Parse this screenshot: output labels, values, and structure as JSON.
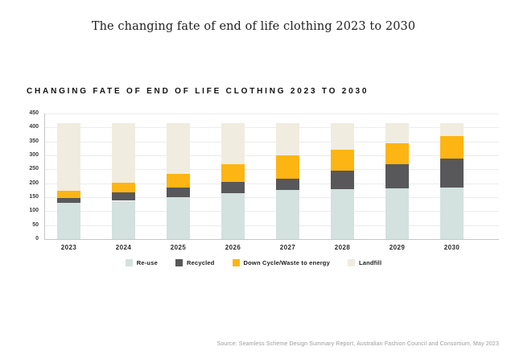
{
  "page": {
    "main_title": "The changing fate of end of life clothing 2023 to 2030",
    "source": "Source: Seamless Scheme Design Summary Report, Australian Fashion Council and Consortium, May 2023"
  },
  "chart_data": {
    "type": "bar",
    "stacked": true,
    "title": "CHANGING FATE OF END OF LIFE CLOTHING 2023 TO 2030",
    "categories": [
      "2023",
      "2024",
      "2025",
      "2026",
      "2027",
      "2028",
      "2029",
      "2030"
    ],
    "series": [
      {
        "name": "Re-use",
        "color": "#d3e1df",
        "values": [
          130,
          137,
          150,
          164,
          176,
          179,
          181,
          184
        ]
      },
      {
        "name": "Recycled",
        "color": "#58585a",
        "values": [
          18,
          31,
          34,
          42,
          40,
          67,
          86,
          104
        ]
      },
      {
        "name": "Down Cycle/Waste to energy",
        "color": "#fdb513",
        "values": [
          24,
          33,
          51,
          61,
          84,
          74,
          77,
          80
        ]
      },
      {
        "name": "Landfill",
        "color": "#f1ece0",
        "values": [
          243,
          214,
          180,
          148,
          115,
          95,
          71,
          47
        ]
      }
    ],
    "bar_totals": [
      415,
      415,
      415,
      415,
      415,
      415,
      415,
      415
    ],
    "ylim": [
      0,
      450
    ],
    "ytick_step": 50,
    "ytick_labels": [
      "0",
      "50",
      "100",
      "150",
      "200",
      "250",
      "300",
      "350",
      "400",
      "450"
    ],
    "grid": true,
    "legend_position": "bottom",
    "grid_color": "#ececec",
    "axis_color": "#c6c6c6"
  }
}
